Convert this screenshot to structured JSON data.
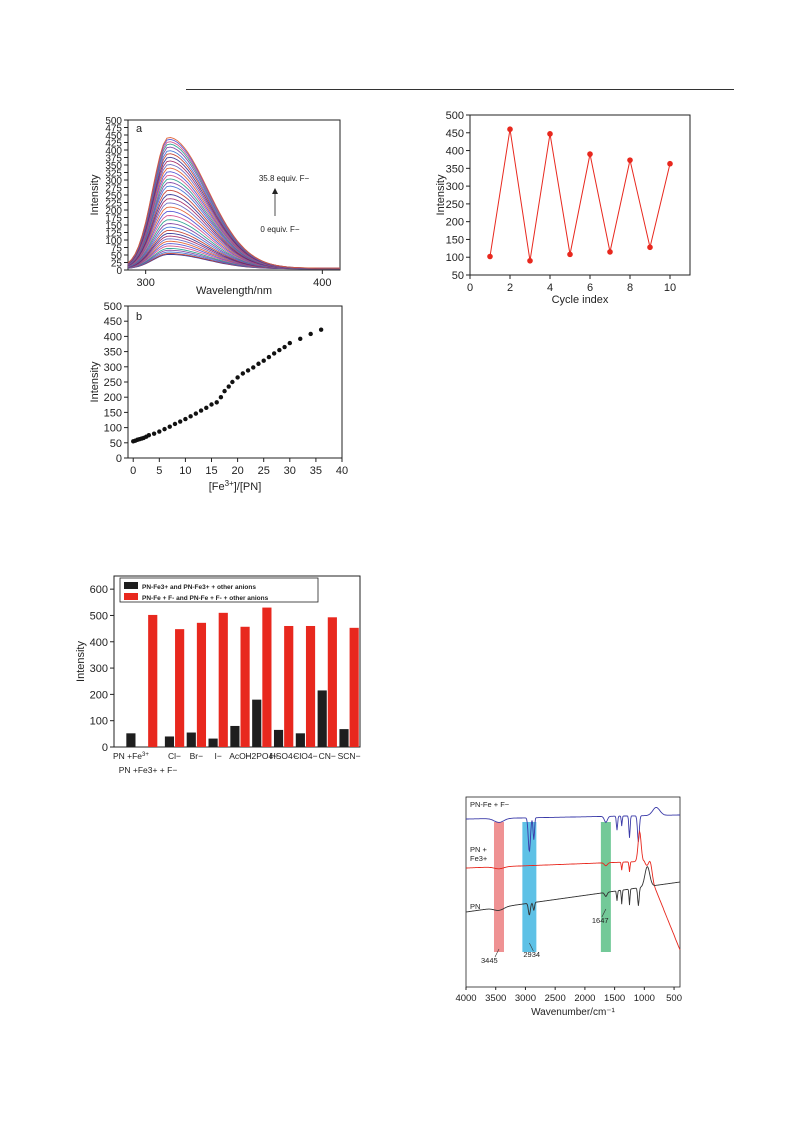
{
  "chart_data": [
    {
      "id": "fluorescence-spectra",
      "type": "line",
      "panel_label": "a",
      "xlabel": "Wavelength/nm",
      "ylabel": "Intensity",
      "xlim": [
        290,
        410
      ],
      "ylim": [
        0,
        500
      ],
      "xticks": [
        300,
        400
      ],
      "yticks": [
        0,
        25,
        50,
        75,
        100,
        125,
        150,
        175,
        200,
        225,
        250,
        275,
        300,
        325,
        350,
        375,
        400,
        425,
        450,
        475,
        500
      ],
      "peak_x": 313,
      "series_peaks": [
        52,
        55,
        60,
        66,
        72,
        80,
        88,
        96,
        104,
        113,
        122,
        132,
        143,
        155,
        168,
        182,
        196,
        210,
        224,
        238,
        252,
        266,
        280,
        292,
        304,
        316,
        328,
        340,
        352,
        364,
        376,
        388,
        398,
        410,
        420,
        428,
        436,
        442
      ],
      "annotation_top": "35.8 equiv. F−",
      "annotation_bottom": "0 equiv. F−",
      "grid": false
    },
    {
      "id": "cycle-index",
      "type": "line",
      "xlabel": "Cycle index",
      "ylabel": "Intensity",
      "xlim": [
        0,
        11
      ],
      "ylim": [
        50,
        500
      ],
      "xticks": [
        0,
        2,
        4,
        6,
        8,
        10
      ],
      "yticks": [
        50,
        100,
        150,
        200,
        250,
        300,
        350,
        400,
        450,
        500
      ],
      "x": [
        1,
        2,
        3,
        4,
        5,
        6,
        7,
        8,
        9,
        10
      ],
      "y": [
        102,
        460,
        90,
        447,
        108,
        390,
        115,
        373,
        128,
        363
      ],
      "color": "#e8281e",
      "grid": false
    },
    {
      "id": "titration",
      "type": "scatter",
      "panel_label": "b",
      "xlabel": "[Fe3+]/[PN]",
      "xlabel_parts": [
        "[Fe",
        "3+",
        "]/[PN]"
      ],
      "ylabel": "Intensity",
      "xlim": [
        -1,
        40
      ],
      "ylim": [
        0,
        500
      ],
      "xticks": [
        0,
        5,
        10,
        15,
        20,
        25,
        30,
        35,
        40
      ],
      "yticks": [
        0,
        50,
        100,
        150,
        200,
        250,
        300,
        350,
        400,
        450,
        500
      ],
      "x": [
        0,
        0.4,
        0.8,
        1.2,
        1.6,
        2,
        2.5,
        3,
        4,
        5,
        6,
        7,
        8,
        9,
        10,
        11,
        12,
        13,
        14,
        15,
        16,
        16.8,
        17.5,
        18.3,
        19,
        20,
        21,
        22,
        23,
        24,
        25,
        26,
        27,
        28,
        29,
        30,
        32,
        34,
        36
      ],
      "y": [
        55,
        57,
        60,
        62,
        64,
        66,
        70,
        75,
        80,
        87,
        95,
        103,
        112,
        120,
        128,
        137,
        146,
        156,
        165,
        176,
        183,
        200,
        220,
        235,
        250,
        265,
        278,
        288,
        298,
        310,
        320,
        332,
        344,
        355,
        365,
        378,
        392,
        408,
        422
      ],
      "grid": false
    },
    {
      "id": "anion-selectivity",
      "type": "bar",
      "ylabel": "Intensity",
      "ylim": [
        0,
        650
      ],
      "yticks": [
        0,
        100,
        200,
        300,
        400,
        500,
        600
      ],
      "categories": [
        "PN +Fe3+",
        "PN +Fe3+ + F−",
        "Cl−",
        "Br−",
        "I−",
        "AcO−",
        "H2PO4−",
        "HSO4−",
        "ClO4−",
        "CN−",
        "SCN−"
      ],
      "category_labels_top": [
        "PN +Fe",
        "",
        "Cl−",
        "Br−",
        "I−",
        "AcO−",
        "H2PO4−",
        "HSO4−",
        "ClO4−",
        "CN−",
        "SCN−"
      ],
      "category_sup_top": [
        "3+",
        "",
        "",
        "",
        "",
        "",
        "",
        "",
        "",
        "",
        ""
      ],
      "category_label_bottom": "PN +Fe3+ + F−",
      "series": [
        {
          "name": "PN-Fe3+ and PN-Fe3+ + other anions",
          "color": "#1e1e1e",
          "values": [
            52,
            null,
            40,
            55,
            32,
            80,
            180,
            65,
            52,
            215,
            68
          ]
        },
        {
          "name": "PN-Fe + F- and PN-Fe + F- + other anions",
          "color": "#e8281e",
          "values": [
            null,
            502,
            448,
            472,
            510,
            457,
            530,
            460,
            460,
            493,
            453
          ]
        }
      ],
      "legend_position": "top",
      "grid": false
    },
    {
      "id": "ir-spectra",
      "type": "line",
      "xlabel": "Wavenumber/cm⁻¹",
      "xlim": [
        4000,
        400
      ],
      "xticks": [
        4000,
        3500,
        3000,
        2500,
        2000,
        1500,
        1000,
        500
      ],
      "series": [
        {
          "name": "PN-Fe + F−",
          "color": "#3a3aa8"
        },
        {
          "name": "PN + Fe3+",
          "name_line1": "PN +",
          "name_line2": "Fe3+",
          "color": "#e8281e"
        },
        {
          "name": "PN",
          "color": "#333333"
        }
      ],
      "highlight_bands": [
        {
          "center": 3445,
          "label": "3445",
          "color": "#ec7f80"
        },
        {
          "center": 2934,
          "label": "2934",
          "color": "#42b6e2"
        },
        {
          "center": 1647,
          "label": "1647",
          "color": "#5bbf86"
        }
      ],
      "grid": false
    }
  ]
}
